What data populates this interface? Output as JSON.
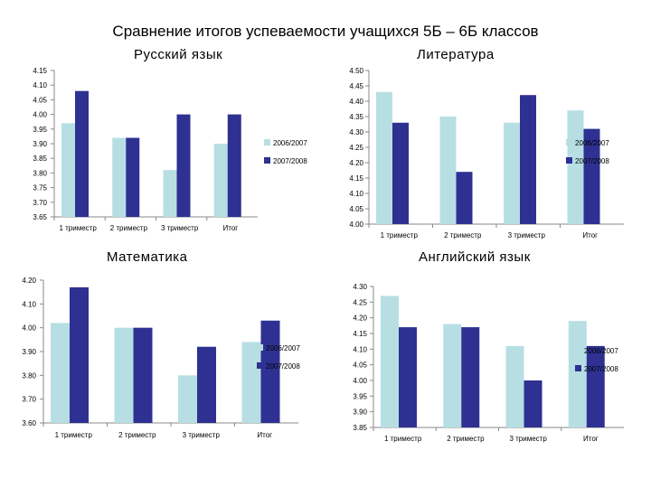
{
  "page": {
    "title": "Сравнение итогов успеваемости учащихся 5Б – 6Б классов"
  },
  "colors": {
    "series_2006_2007": "#b7dfe3",
    "series_2007_2008": "#2e3192"
  },
  "chart_data": [
    {
      "type": "bar",
      "title": "Русский язык",
      "categories": [
        "1 триместр",
        "2 триместр",
        "3 триместр",
        "Итог"
      ],
      "series": [
        {
          "name": "2006/2007",
          "values": [
            3.97,
            3.92,
            3.81,
            3.9
          ]
        },
        {
          "name": "2007/2008",
          "values": [
            4.08,
            3.92,
            4.0,
            4.0
          ]
        }
      ],
      "ylim": [
        3.65,
        4.15
      ],
      "yticks": [
        "3.65",
        "3.70",
        "3.75",
        "3.80",
        "3.85",
        "3.90",
        "3.95",
        "4.00",
        "4.05",
        "4.10",
        "4.15"
      ],
      "legend": "right",
      "grid": false
    },
    {
      "type": "bar",
      "title": "Литература",
      "categories": [
        "1 триместр",
        "2 триместр",
        "3 триместр",
        "Итог"
      ],
      "series": [
        {
          "name": "2006/2007",
          "values": [
            4.43,
            4.35,
            4.33,
            4.37
          ]
        },
        {
          "name": "2007/2008",
          "values": [
            4.33,
            4.17,
            4.42,
            4.31
          ]
        }
      ],
      "ylim": [
        4.0,
        4.5
      ],
      "yticks": [
        "4.00",
        "4.05",
        "4.10",
        "4.15",
        "4.20",
        "4.25",
        "4.30",
        "4.35",
        "4.40",
        "4.45",
        "4.50"
      ],
      "legend": "right",
      "grid": false
    },
    {
      "type": "bar",
      "title": "Математика",
      "categories": [
        "1 триместр",
        "2 триместр",
        "3 триместр",
        "Итог"
      ],
      "series": [
        {
          "name": "2006/2007",
          "values": [
            4.02,
            4.0,
            3.8,
            3.94
          ]
        },
        {
          "name": "2007/2008",
          "values": [
            4.17,
            4.0,
            3.92,
            4.03
          ]
        }
      ],
      "ylim": [
        3.6,
        4.2
      ],
      "yticks": [
        "3.60",
        "3.70",
        "3.80",
        "3.90",
        "4.00",
        "4.10",
        "4.20"
      ],
      "legend": "right",
      "grid": false
    },
    {
      "type": "bar",
      "title": "Английский язык",
      "categories": [
        "1 триместр",
        "2 триместр",
        "3 триместр",
        "Итог"
      ],
      "series": [
        {
          "name": "2006/2007",
          "values": [
            4.27,
            4.18,
            4.11,
            4.19
          ]
        },
        {
          "name": "2007/2008",
          "values": [
            4.17,
            4.17,
            4.0,
            4.11
          ]
        }
      ],
      "ylim": [
        3.85,
        4.3
      ],
      "yticks": [
        "3.85",
        "3.90",
        "3.95",
        "4.00",
        "4.05",
        "4.10",
        "4.15",
        "4.20",
        "4.25",
        "4.30"
      ],
      "legend": "right",
      "grid": false
    }
  ]
}
